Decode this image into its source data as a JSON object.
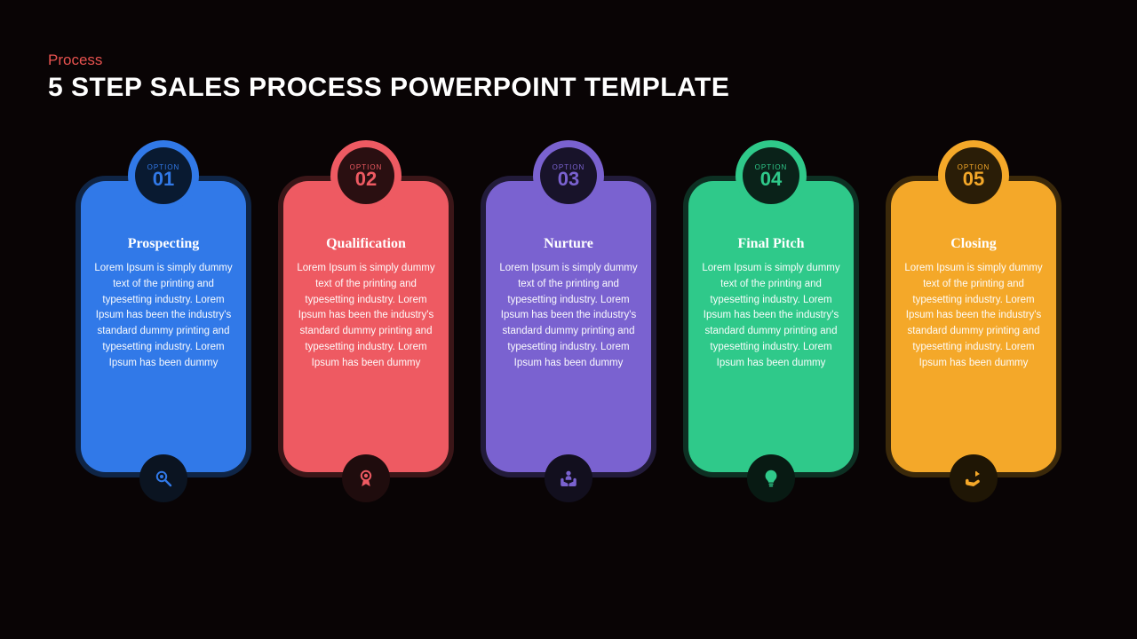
{
  "slide": {
    "background_color": "#090405",
    "eyebrow": {
      "text": "Process",
      "color": "#e7524f"
    },
    "title": {
      "text": "5 STEP SALES PROCESS POWERPOINT TEMPLATE",
      "color": "#ffffff"
    },
    "option_label": "OPTION",
    "body_text": "Lorem Ipsum is simply dummy text of the printing and typesetting industry. Lorem Ipsum has been the industry's standard dummy printing and typesetting industry. Lorem Ipsum has been dummy",
    "cards": [
      {
        "number": "01",
        "title": "Prospecting",
        "card_color": "#3179e8",
        "outer_color": "#0f2546",
        "badge_ring_color": "#3179e8",
        "badge_inner_color": "#091a31",
        "badge_text_color": "#3179e8",
        "icon_bg_color": "#0b1421",
        "icon_color": "#3179e8",
        "icon": "search"
      },
      {
        "number": "02",
        "title": "Qualification",
        "card_color": "#ee5a62",
        "outer_color": "#3b1618",
        "badge_ring_color": "#ee5a62",
        "badge_inner_color": "#2a0f11",
        "badge_text_color": "#ee5a62",
        "icon_bg_color": "#1f0c0d",
        "icon_color": "#ee5a62",
        "icon": "award"
      },
      {
        "number": "03",
        "title": "Nurture",
        "card_color": "#7a62d0",
        "outer_color": "#221b3a",
        "badge_ring_color": "#7a62d0",
        "badge_inner_color": "#18132a",
        "badge_text_color": "#7a62d0",
        "icon_bg_color": "#120f1e",
        "icon_color": "#7a62d0",
        "icon": "hands"
      },
      {
        "number": "04",
        "title": "Final Pitch",
        "card_color": "#2fc98a",
        "outer_color": "#0d3023",
        "badge_ring_color": "#2fc98a",
        "badge_inner_color": "#0a2219",
        "badge_text_color": "#2fc98a",
        "icon_bg_color": "#081a13",
        "icon_color": "#2fc98a",
        "icon": "bulb"
      },
      {
        "number": "05",
        "title": "Closing",
        "card_color": "#f4a829",
        "outer_color": "#3b290a",
        "badge_ring_color": "#f4a829",
        "badge_inner_color": "#2a1d07",
        "badge_text_color": "#f4a829",
        "icon_bg_color": "#1f1605",
        "icon_color": "#f4a829",
        "icon": "handshare"
      }
    ]
  }
}
